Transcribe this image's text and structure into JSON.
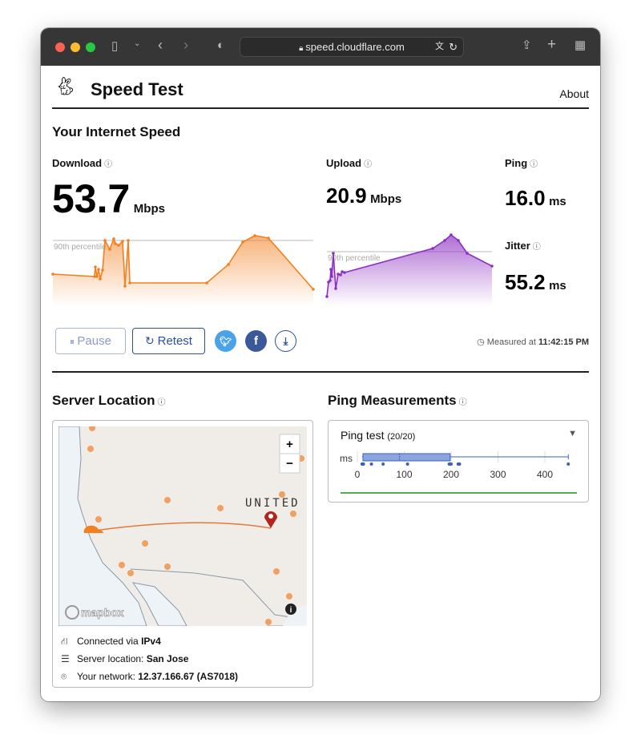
{
  "browser": {
    "url": "speed.cloudflare.com"
  },
  "header": {
    "title": "Speed Test",
    "about": "About"
  },
  "speed": {
    "title": "Your Internet Speed",
    "download": {
      "label": "Download",
      "value": "53.7",
      "unit": "Mbps",
      "percentile_label": "90th percentile"
    },
    "upload": {
      "label": "Upload",
      "value": "20.9",
      "unit": "Mbps",
      "percentile_label": "90th percentile"
    },
    "ping": {
      "label": "Ping",
      "value": "16.0",
      "unit": "ms"
    },
    "jitter": {
      "label": "Jitter",
      "value": "55.2",
      "unit": "ms"
    }
  },
  "actions": {
    "pause": "Pause",
    "retest": "Retest",
    "measured_prefix": "Measured at",
    "measured_time": "11:42:15 PM"
  },
  "server": {
    "title": "Server Location",
    "map_country": "UNITED STATES",
    "map_attribution": "mapbox",
    "connected_prefix": "Connected via",
    "connected_value": "IPv4",
    "location_prefix": "Server location:",
    "location_value": "San Jose",
    "network_prefix": "Your network:",
    "network_value": "12.37.166.67 (AS7018)"
  },
  "ping_measurements": {
    "title": "Ping Measurements",
    "test_label": "Ping test",
    "count": "(20/20)",
    "unit": "ms",
    "axis_ticks": [
      0,
      100,
      200,
      300,
      400
    ],
    "box": {
      "q1": 12,
      "median": 90,
      "q3": 198,
      "min": 10,
      "max": 450
    },
    "points": [
      10,
      11,
      12,
      13,
      30,
      55,
      107,
      196,
      198,
      200,
      215,
      218,
      450
    ]
  },
  "colors": {
    "download": "#f38020",
    "upload": "#8e2fc2",
    "ping": "#3a5fc8",
    "twitter": "#4aa3e8",
    "facebook": "#3b5998"
  }
}
